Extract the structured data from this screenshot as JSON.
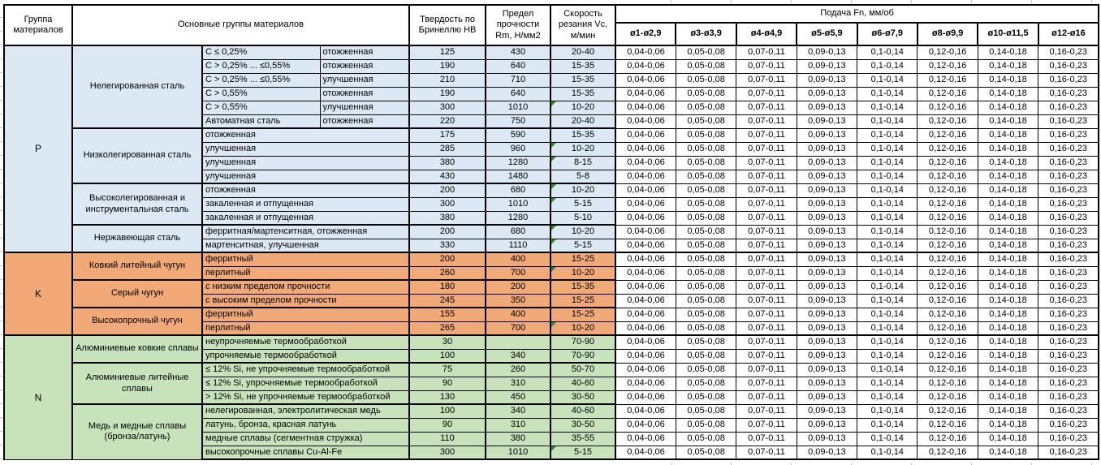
{
  "header": {
    "group_col": "Группа материалов",
    "main_col": "Основные группы материалов",
    "hardness_col": "Твердость по Бринеллю НВ",
    "strength_col": "Предел прочности Rm, Н/мм2",
    "speed_col": "Скорость резания Vc, м/мин",
    "feed_title": "Подача Fn, мм/об",
    "feed_cols": [
      "ø1-ø2,9",
      "ø3-ø3,9",
      "ø4-ø4,9",
      "ø5-ø5,9",
      "ø6-ø7,9",
      "ø8-ø9,9",
      "ø10-ø11,5",
      "ø12-ø16"
    ]
  },
  "feed_values": [
    "0,04-0,06",
    "0,05-0,08",
    "0,07-0,11",
    "0,09-0,13",
    "0,1-0,14",
    "0,12-0,16",
    "0,14-0,18",
    "0,16-0,23"
  ],
  "colors": {
    "P": "#dce9f5",
    "K": "#f2a978",
    "N": "#c8e3bc",
    "flag": "#2e8b2e",
    "border": "#000000"
  },
  "groups": [
    {
      "code": "P",
      "subgroups": [
        {
          "name": "Нелегированная сталь",
          "rows": [
            {
              "spec": "C ≤ 0,25%",
              "state": "отожженная",
              "hb": "125",
              "rm": "430",
              "vc": "20-40",
              "flag": false
            },
            {
              "spec": "C > 0,25% ... ≤0,55%",
              "state": "отожженная",
              "hb": "190",
              "rm": "640",
              "vc": "15-35",
              "flag": false
            },
            {
              "spec": "C > 0,25% ... ≤0,55%",
              "state": "улучшенная",
              "hb": "210",
              "rm": "710",
              "vc": "15-35",
              "flag": false
            },
            {
              "spec": "C > 0,55%",
              "state": "отожженная",
              "hb": "190",
              "rm": "640",
              "vc": "15-35",
              "flag": false
            },
            {
              "spec": "C > 0,55%",
              "state": "улучшенная",
              "hb": "300",
              "rm": "1010",
              "vc": "10-20",
              "flag": true
            },
            {
              "spec": "Автоматная сталь",
              "state": "отожженная",
              "hb": "220",
              "rm": "750",
              "vc": "20-40",
              "flag": false
            }
          ]
        },
        {
          "name": "Низколегированная сталь",
          "rows": [
            {
              "desc": "отожженная",
              "hb": "175",
              "rm": "590",
              "vc": "15-35",
              "flag": false
            },
            {
              "desc": "улучшенная",
              "hb": "285",
              "rm": "960",
              "vc": "10-20",
              "flag": true
            },
            {
              "desc": "улучшенная",
              "hb": "380",
              "rm": "1280",
              "vc": "8-15",
              "flag": true
            },
            {
              "desc": "улучшенная",
              "hb": "430",
              "rm": "1480",
              "vc": "5-8",
              "flag": false
            }
          ]
        },
        {
          "name": "Высоколегированная и инструментальная сталь",
          "rows": [
            {
              "desc": "отожженная",
              "hb": "200",
              "rm": "680",
              "vc": "10-20",
              "flag": true
            },
            {
              "desc": "закаленная и отпущенная",
              "hb": "300",
              "rm": "1010",
              "vc": "5-15",
              "flag": true
            },
            {
              "desc": "закаленная и отпущенная",
              "hb": "380",
              "rm": "1280",
              "vc": "5-10",
              "flag": false
            }
          ]
        },
        {
          "name": "Нержавеющая сталь",
          "rows": [
            {
              "desc": "ферритная/мартенситная, отожженная",
              "hb": "200",
              "rm": "680",
              "vc": "10-20",
              "flag": true
            },
            {
              "desc": "мартенситная, улучшенная",
              "hb": "330",
              "rm": "1110",
              "vc": "5-15",
              "flag": true
            }
          ]
        }
      ]
    },
    {
      "code": "K",
      "subgroups": [
        {
          "name": "Ковкий литейный чугун",
          "rows": [
            {
              "desc": "ферритный",
              "hb": "200",
              "rm": "400",
              "vc": "15-25",
              "flag": false
            },
            {
              "desc": "перлитный",
              "hb": "260",
              "rm": "700",
              "vc": "10-20",
              "flag": true
            }
          ]
        },
        {
          "name": "Серый чугун",
          "rows": [
            {
              "desc": "с низким пределом прочности",
              "hb": "180",
              "rm": "200",
              "vc": "15-35",
              "flag": false
            },
            {
              "desc": "с высоким пределом прочности",
              "hb": "245",
              "rm": "350",
              "vc": "15-25",
              "flag": false
            }
          ]
        },
        {
          "name": "Высокопрочный чугун",
          "rows": [
            {
              "desc": "ферритный",
              "hb": "155",
              "rm": "400",
              "vc": "15-25",
              "flag": false
            },
            {
              "desc": "перлитный",
              "hb": "265",
              "rm": "700",
              "vc": "10-20",
              "flag": true
            }
          ]
        }
      ]
    },
    {
      "code": "N",
      "subgroups": [
        {
          "name": "Алюминиевые ковкие сплавы",
          "rows": [
            {
              "desc": "неупрочняемые термообработкой",
              "hb": "30",
              "rm": "",
              "vc": "70-90",
              "flag": false
            },
            {
              "desc": "упрочняемые термообработкой",
              "hb": "100",
              "rm": "340",
              "vc": "70-90",
              "flag": false
            }
          ]
        },
        {
          "name": "Алюминиевые литейные сплавы",
          "rows": [
            {
              "desc": "≤ 12% Si, не упрочняемые термообработкой",
              "hb": "75",
              "rm": "260",
              "vc": "50-70",
              "flag": false
            },
            {
              "desc": "≤ 12% Si, упрочняемые термообработкой",
              "hb": "90",
              "rm": "310",
              "vc": "40-60",
              "flag": false
            },
            {
              "desc": "> 12% Si, не упрочняемые термообработкой",
              "hb": "130",
              "rm": "450",
              "vc": "30-50",
              "flag": false
            }
          ]
        },
        {
          "name": "Медь и медные сплавы (бронза/латунь)",
          "rows": [
            {
              "desc": "нелегированная, электролитическая медь",
              "hb": "100",
              "rm": "340",
              "vc": "40-60",
              "flag": false
            },
            {
              "desc": "латунь, бронза, красная латунь",
              "hb": "90",
              "rm": "310",
              "vc": "30-50",
              "flag": false
            },
            {
              "desc": "медные сплавы (сегментная стружка)",
              "hb": "110",
              "rm": "380",
              "vc": "35-55",
              "flag": false
            },
            {
              "desc": "высокопрочные сплавы Cu-Al-Fe",
              "hb": "300",
              "rm": "1010",
              "vc": "5-15",
              "flag": true
            }
          ]
        }
      ]
    }
  ]
}
